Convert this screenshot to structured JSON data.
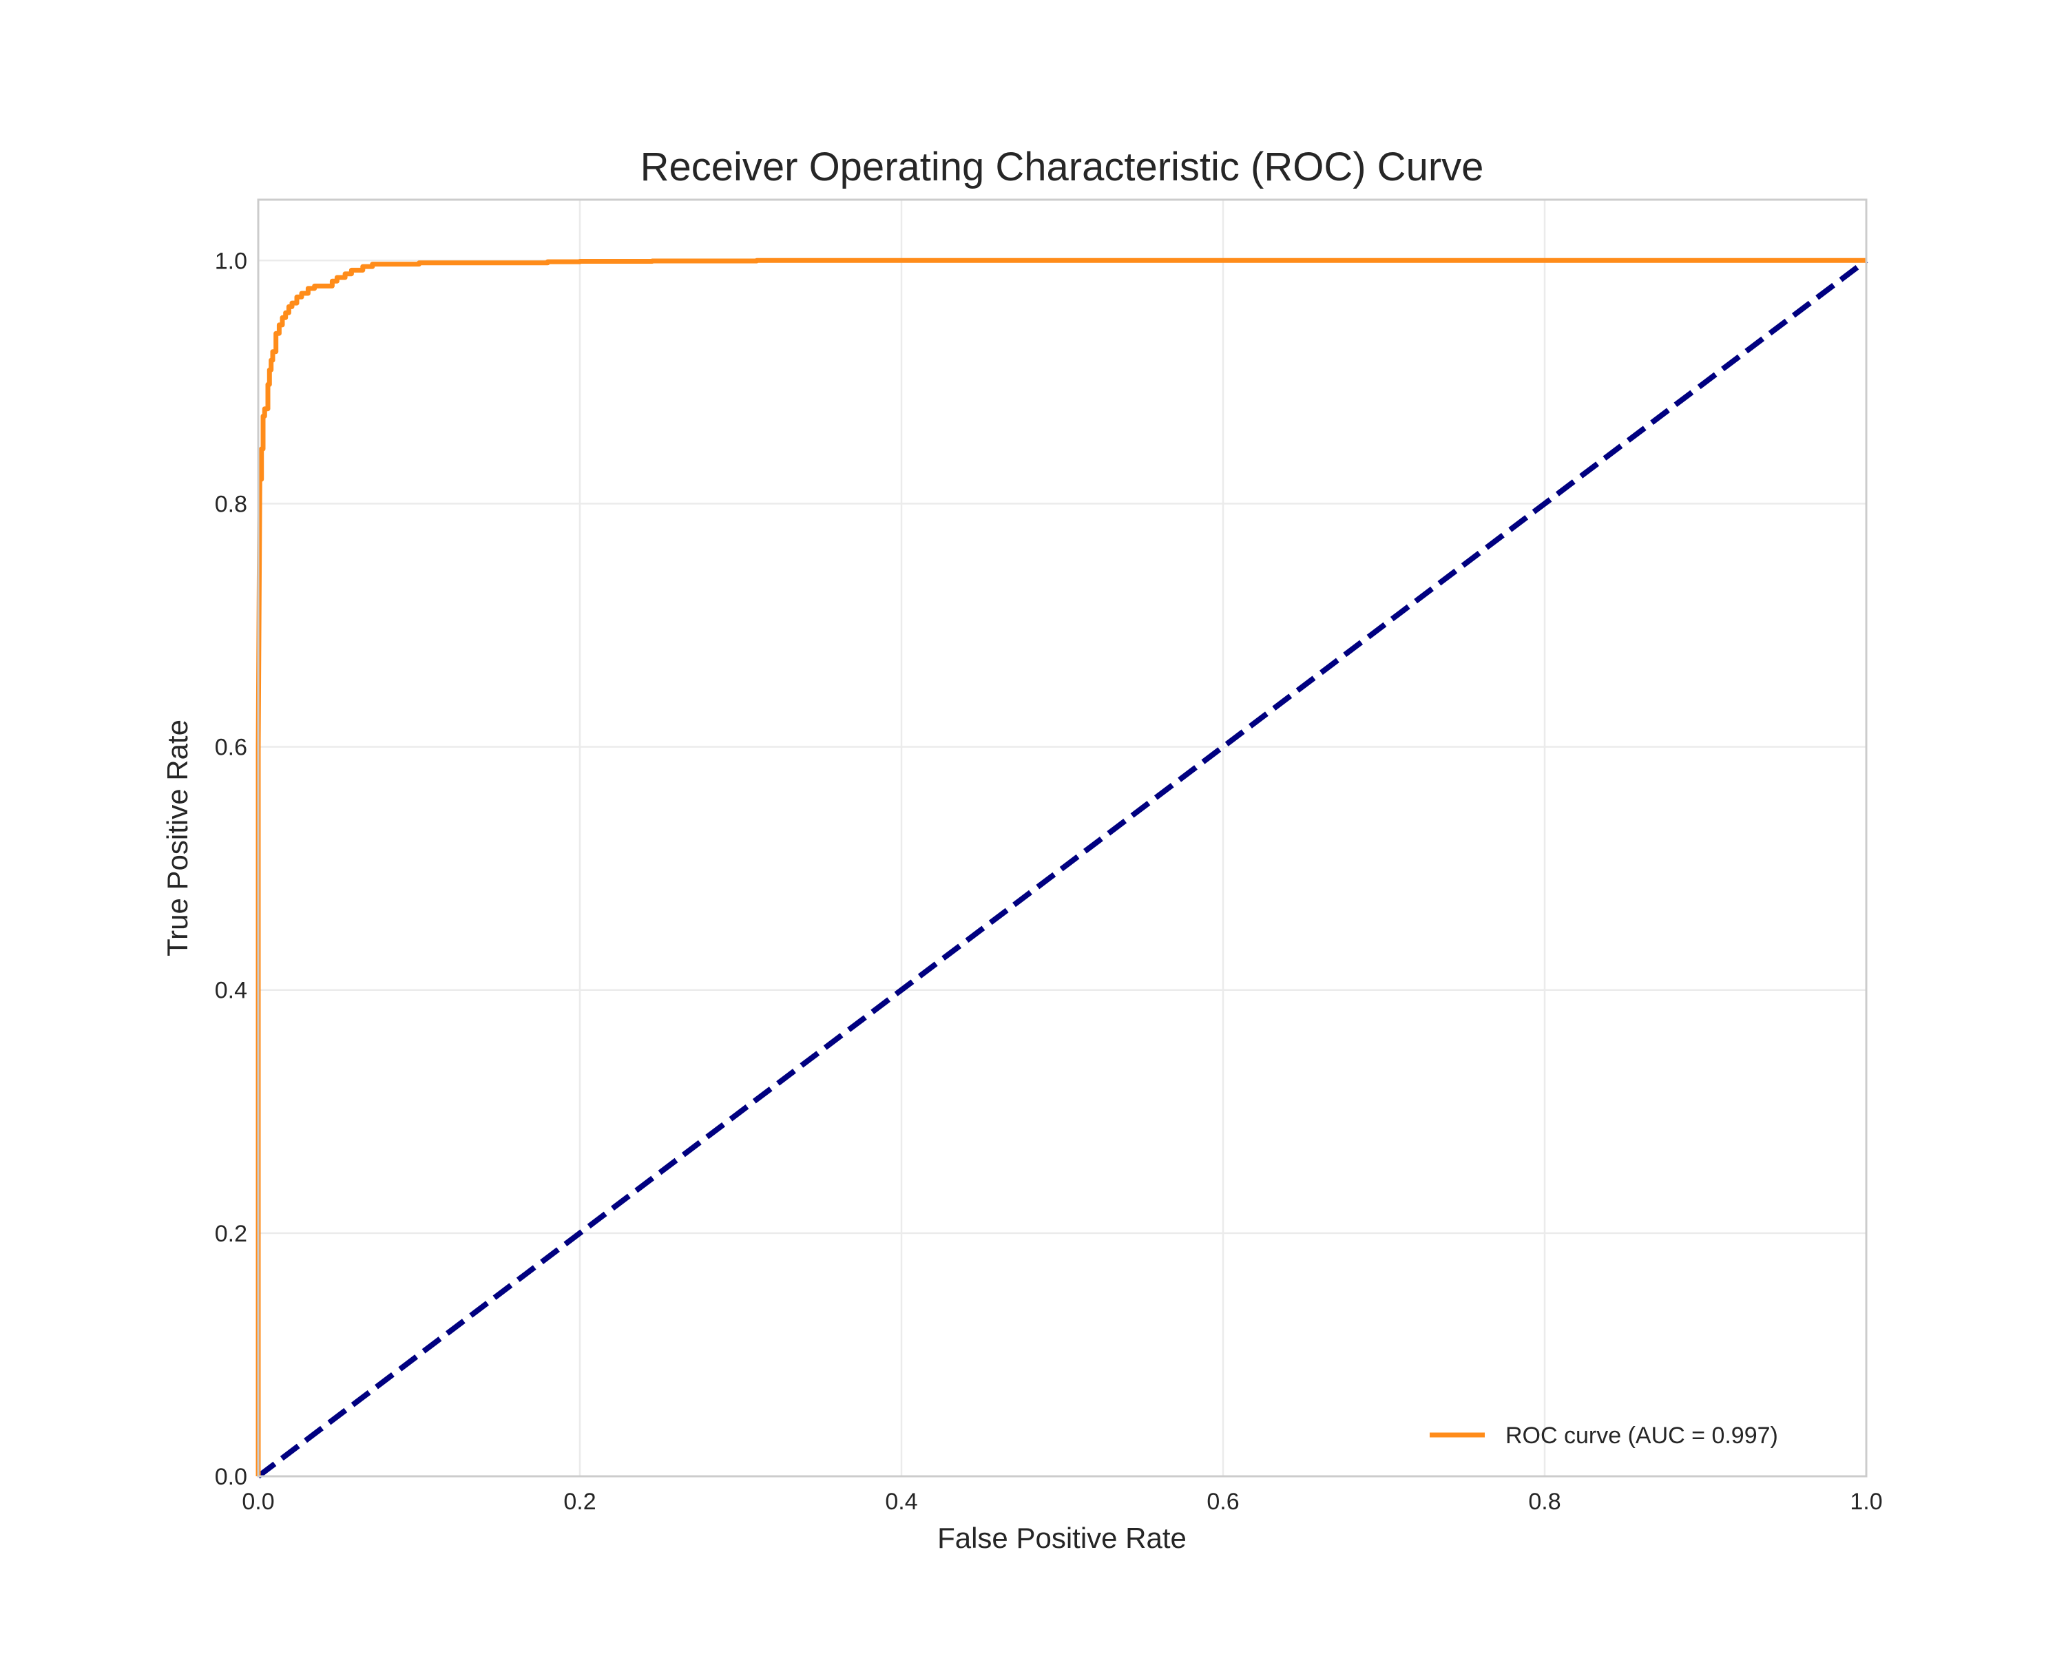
{
  "chart_data": {
    "type": "line",
    "title": "Receiver Operating Characteristic (ROC) Curve",
    "xlabel": "False Positive Rate",
    "ylabel": "True Positive Rate",
    "xlim": [
      0.0,
      1.0
    ],
    "ylim": [
      0.0,
      1.05
    ],
    "xticks": [
      0.0,
      0.2,
      0.4,
      0.6,
      0.8,
      1.0
    ],
    "xtick_labels": [
      "0.0",
      "0.2",
      "0.4",
      "0.6",
      "0.8",
      "1.0"
    ],
    "yticks": [
      0.0,
      0.2,
      0.4,
      0.6,
      0.8,
      1.0
    ],
    "ytick_labels": [
      "0.0",
      "0.2",
      "0.4",
      "0.6",
      "0.8",
      "1.0"
    ],
    "grid": true,
    "legend_position": "lower-right",
    "series": [
      {
        "name": "ROC curve (AUC = 0.997)",
        "color": "#ff8c1a",
        "line_style": "solid",
        "x": [
          0.0,
          0.0,
          0.001,
          0.002,
          0.002,
          0.003,
          0.003,
          0.004,
          0.004,
          0.006,
          0.006,
          0.007,
          0.007,
          0.008,
          0.008,
          0.009,
          0.009,
          0.011,
          0.011,
          0.013,
          0.013,
          0.015,
          0.015,
          0.017,
          0.017,
          0.019,
          0.019,
          0.021,
          0.021,
          0.024,
          0.024,
          0.027,
          0.027,
          0.031,
          0.031,
          0.035,
          0.035,
          0.046,
          0.046,
          0.049,
          0.049,
          0.054,
          0.054,
          0.058,
          0.058,
          0.065,
          0.065,
          0.071,
          0.071,
          0.1,
          0.1,
          0.18,
          0.18,
          0.2,
          0.2,
          0.245,
          0.245,
          0.31,
          0.31,
          1.0
        ],
        "y": [
          0.0,
          0.6,
          0.82,
          0.82,
          0.845,
          0.845,
          0.872,
          0.872,
          0.878,
          0.878,
          0.898,
          0.898,
          0.91,
          0.91,
          0.918,
          0.918,
          0.925,
          0.925,
          0.94,
          0.94,
          0.947,
          0.947,
          0.953,
          0.953,
          0.957,
          0.957,
          0.962,
          0.962,
          0.965,
          0.965,
          0.97,
          0.97,
          0.973,
          0.973,
          0.977,
          0.977,
          0.979,
          0.979,
          0.983,
          0.983,
          0.986,
          0.986,
          0.989,
          0.989,
          0.992,
          0.992,
          0.995,
          0.995,
          0.997,
          0.997,
          0.998,
          0.998,
          0.999,
          0.999,
          0.9993,
          0.9993,
          0.9996,
          0.9996,
          1.0,
          1.0
        ]
      },
      {
        "color": "#000080",
        "line_style": "dashed",
        "x": [
          0.0,
          1.0
        ],
        "y": [
          0.0,
          1.0
        ]
      }
    ]
  }
}
